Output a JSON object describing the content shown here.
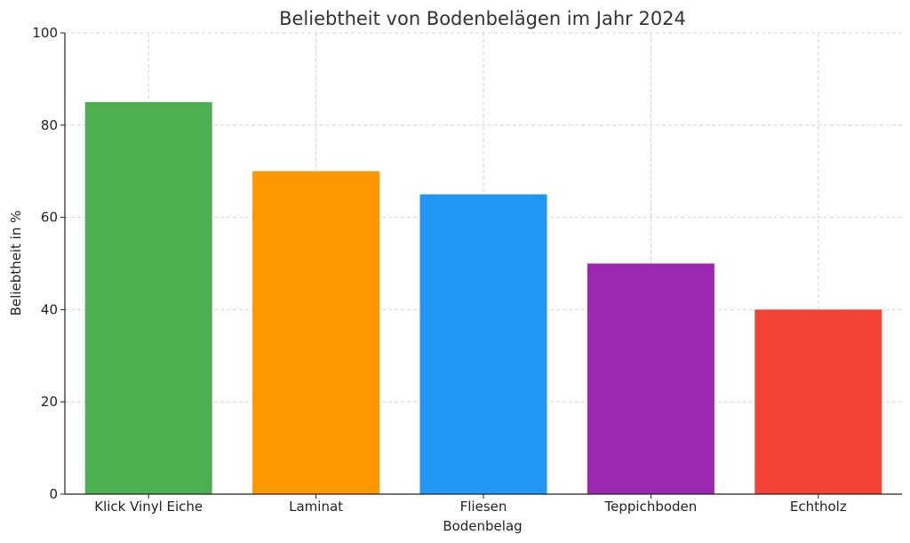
{
  "chart_data": {
    "type": "bar",
    "title": "Beliebtheit von Bodenbelägen im Jahr 2024",
    "xlabel": "Bodenbelag",
    "ylabel": "Beliebtheit in %",
    "categories": [
      "Klick Vinyl Eiche",
      "Laminat",
      "Fliesen",
      "Teppichboden",
      "Echtholz"
    ],
    "values": [
      85,
      70,
      65,
      50,
      40
    ],
    "colors": [
      "#4caf50",
      "#ff9800",
      "#2196f3",
      "#9c27b0",
      "#f44336"
    ],
    "ylim": [
      0,
      100
    ],
    "yticks": [
      0,
      20,
      40,
      60,
      80,
      100
    ],
    "grid": true,
    "grid_style": "dashed",
    "legend": "none"
  }
}
